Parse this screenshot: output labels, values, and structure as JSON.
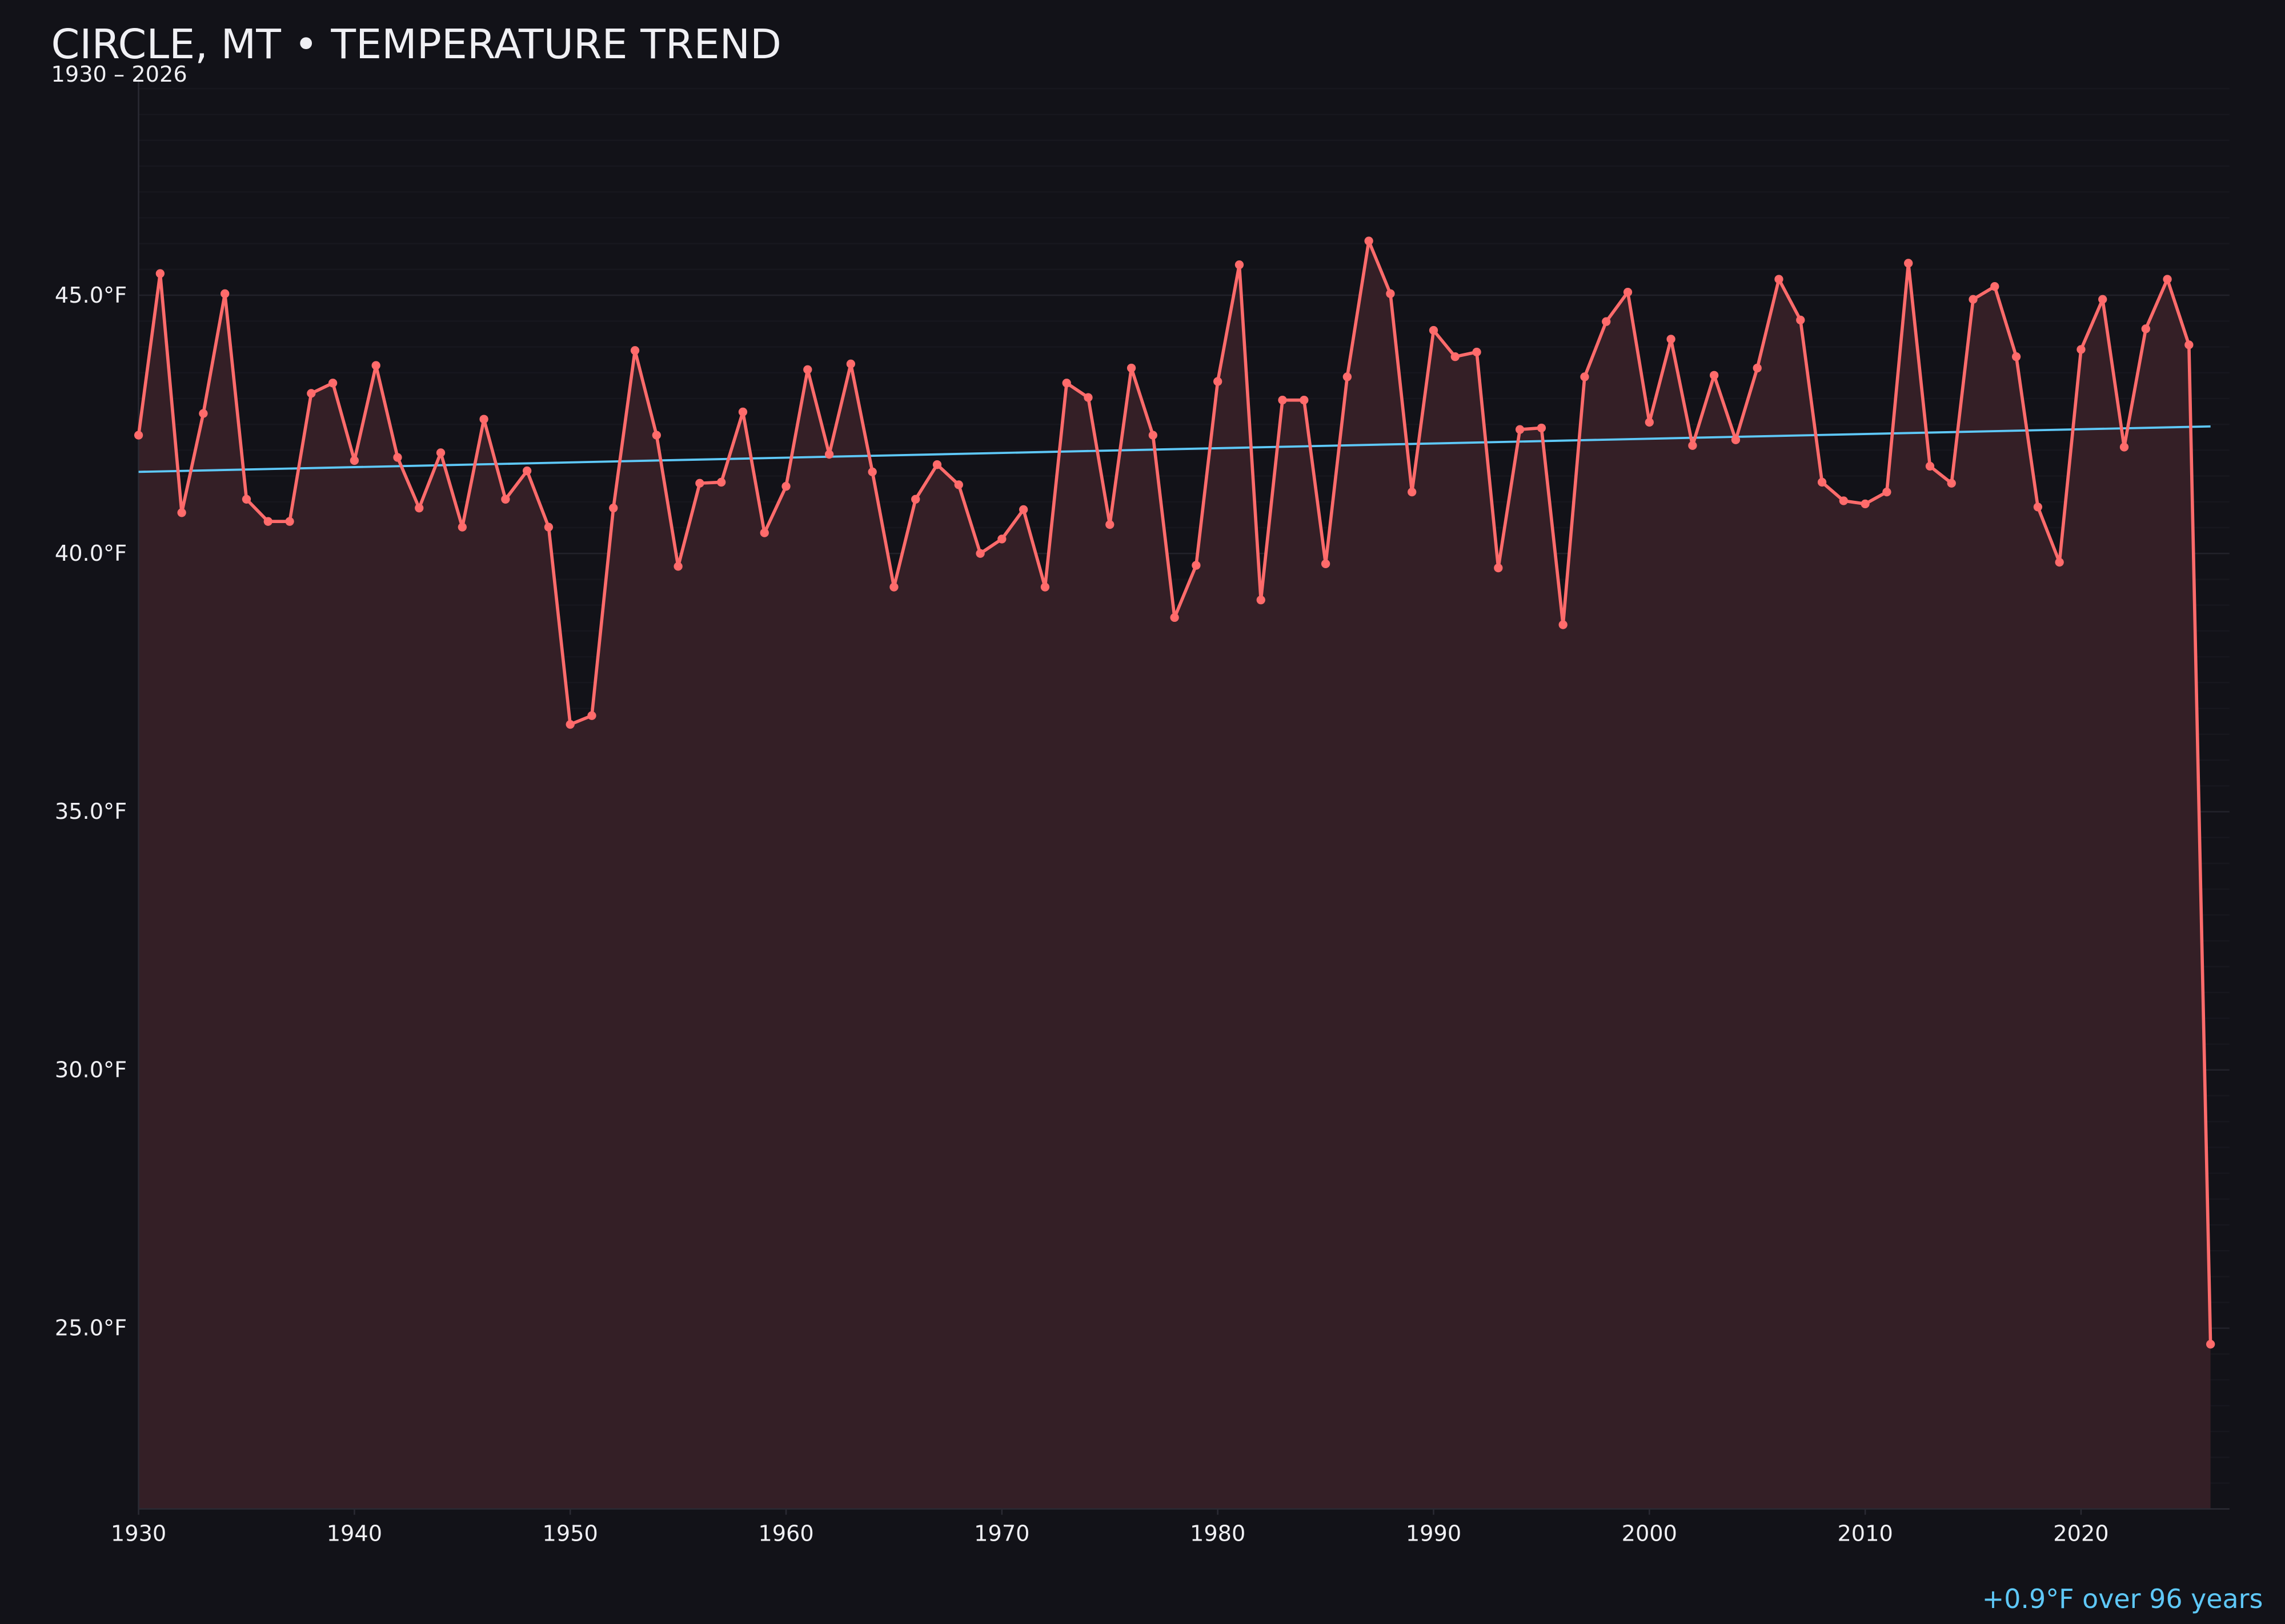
{
  "title": "CIRCLE, MT • TEMPERATURE TREND",
  "subtitle": "1930 – 2026",
  "footer_note": "+0.9°F over 96 years",
  "colors": {
    "background": "#121218",
    "series": "#ff6b6b",
    "area_fill": "#341f26",
    "trend": "#5ec8f8",
    "text": "#f0f0f4",
    "grid": "#1e1e25"
  },
  "chart_data": {
    "type": "line",
    "title": "CIRCLE, MT • TEMPERATURE TREND",
    "subtitle": "1930 – 2026",
    "xlabel": "",
    "ylabel": "",
    "xlim": [
      1930,
      2026
    ],
    "ylim": [
      21.5,
      49.25
    ],
    "x_ticks": [
      "1930",
      "1940",
      "1950",
      "1960",
      "1970",
      "1980",
      "1990",
      "2000",
      "2010",
      "2020"
    ],
    "y_ticks": [
      "25.0°F",
      "30.0°F",
      "35.0°F",
      "40.0°F",
      "45.0°F"
    ],
    "grid": true,
    "area_filled": true,
    "x": [
      1930,
      1931,
      1932,
      1933,
      1934,
      1935,
      1936,
      1937,
      1938,
      1939,
      1940,
      1941,
      1942,
      1943,
      1944,
      1945,
      1946,
      1947,
      1948,
      1949,
      1950,
      1951,
      1952,
      1953,
      1954,
      1955,
      1956,
      1957,
      1958,
      1959,
      1960,
      1961,
      1962,
      1963,
      1964,
      1965,
      1966,
      1967,
      1968,
      1969,
      1970,
      1971,
      1972,
      1973,
      1974,
      1975,
      1976,
      1977,
      1978,
      1979,
      1980,
      1981,
      1982,
      1983,
      1984,
      1985,
      1986,
      1987,
      1988,
      1989,
      1990,
      1991,
      1992,
      1993,
      1994,
      1995,
      1996,
      1997,
      1998,
      1999,
      2000,
      2001,
      2002,
      2003,
      2004,
      2005,
      2006,
      2007,
      2008,
      2009,
      2010,
      2011,
      2012,
      2013,
      2014,
      2015,
      2016,
      2017,
      2018,
      2019,
      2020,
      2021,
      2022,
      2023,
      2024,
      2025,
      2026
    ],
    "values": [
      42.29,
      45.42,
      40.79,
      42.71,
      45.03,
      41.05,
      40.62,
      40.62,
      43.1,
      43.3,
      41.8,
      43.64,
      41.86,
      40.88,
      41.95,
      40.51,
      42.6,
      41.05,
      41.6,
      40.51,
      36.69,
      36.86,
      40.88,
      43.93,
      42.29,
      39.75,
      41.36,
      41.38,
      42.74,
      40.4,
      41.3,
      43.56,
      41.92,
      43.67,
      41.58,
      39.35,
      41.05,
      41.72,
      41.33,
      40.0,
      40.28,
      40.85,
      39.35,
      43.3,
      43.02,
      40.56,
      43.59,
      42.29,
      38.76,
      39.77,
      43.33,
      45.59,
      39.1,
      42.97,
      42.97,
      39.8,
      43.42,
      46.05,
      45.03,
      41.19,
      44.32,
      43.81,
      43.9,
      39.72,
      42.4,
      42.43,
      38.62,
      43.42,
      44.49,
      45.06,
      42.54,
      44.15,
      42.09,
      43.45,
      42.2,
      43.59,
      45.31,
      44.52,
      41.38,
      41.02,
      40.96,
      41.19,
      45.62,
      41.69,
      41.36,
      44.92,
      45.17,
      43.81,
      40.9,
      39.83,
      43.95,
      44.92,
      42.06,
      44.35,
      45.31,
      44.04,
      24.69
    ],
    "trend": {
      "x": [
        1930,
        2026
      ],
      "values": [
        41.58,
        42.46
      ]
    }
  }
}
